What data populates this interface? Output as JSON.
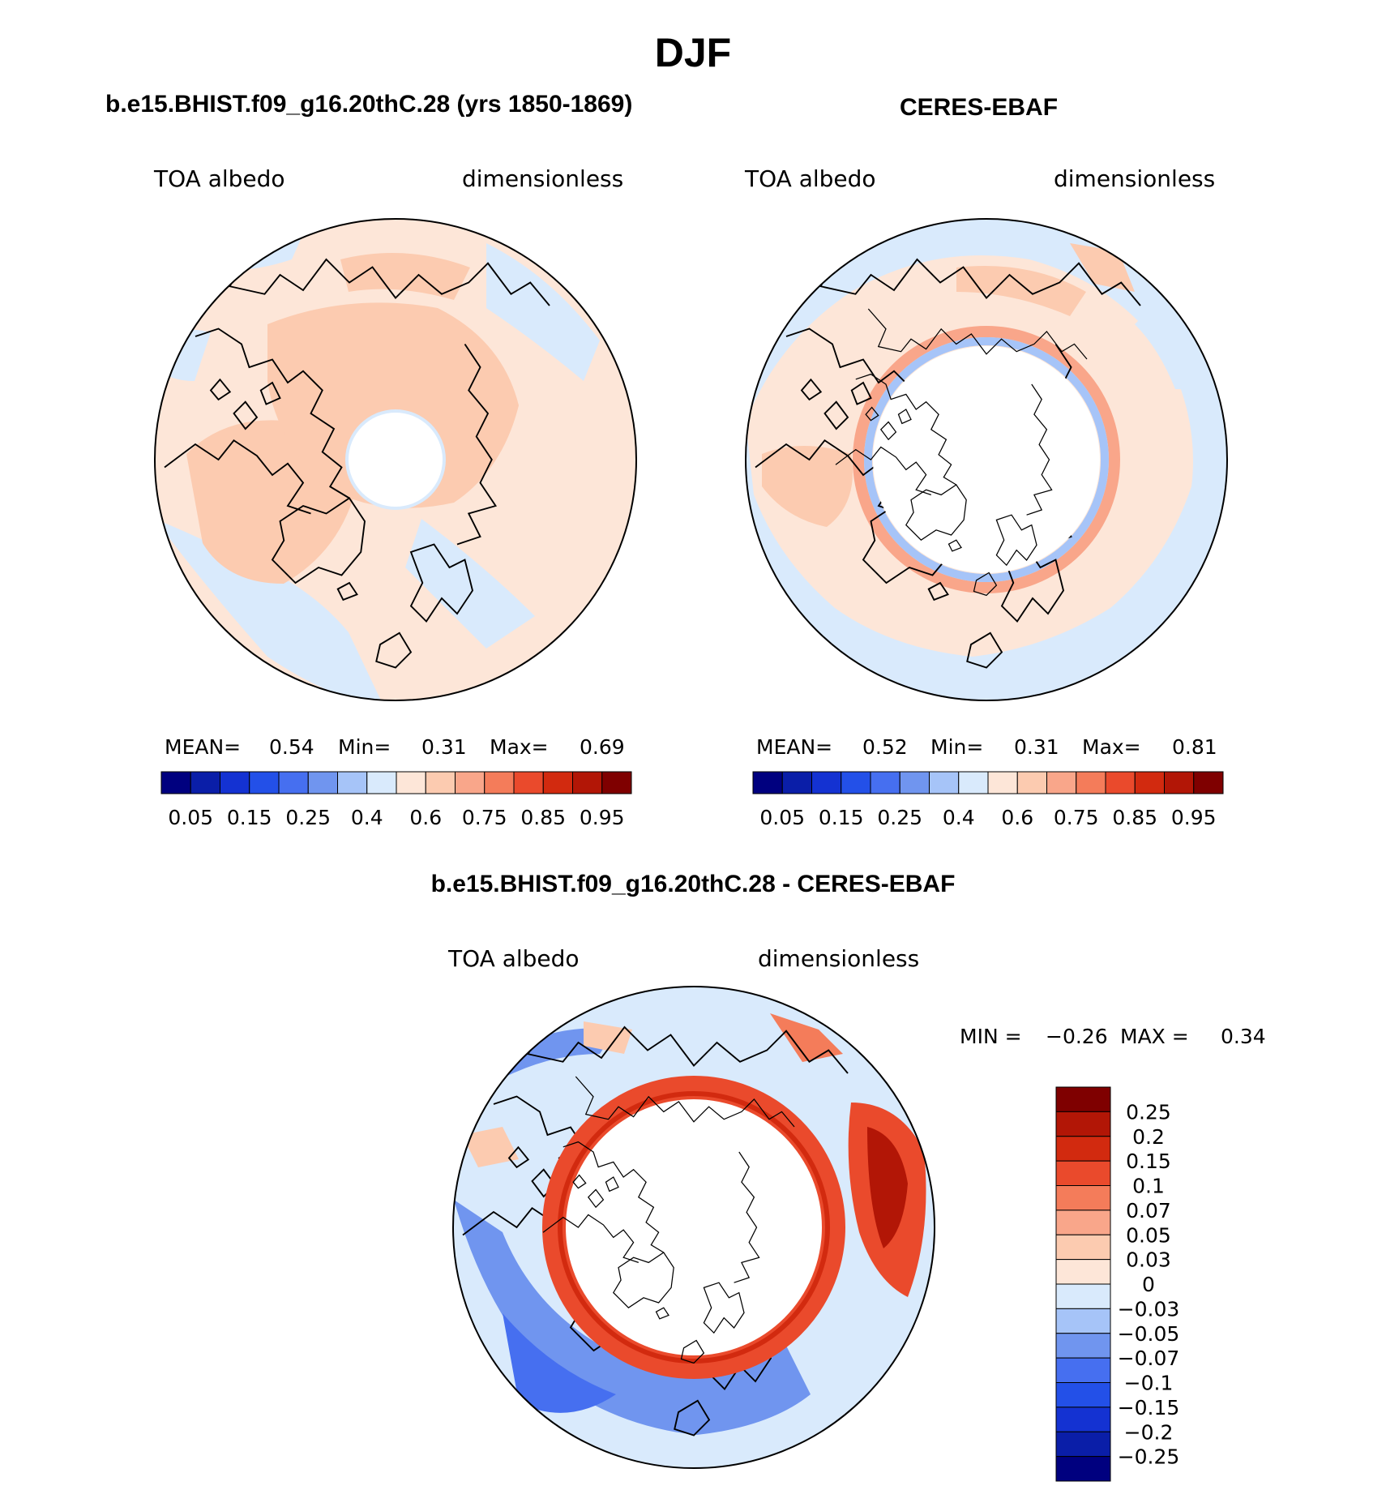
{
  "title": "DJF",
  "panels": [
    {
      "title": "b.e15.BHIST.f09_g16.20thC.28 (yrs 1850-1869)",
      "variable": "TOA albedo",
      "units": "dimensionless",
      "stats": {
        "mean_label": "MEAN=",
        "mean": "0.54",
        "min_label": "Min=",
        "min": "0.31",
        "max_label": "Max=",
        "max": "0.69"
      },
      "colorbar_ticks": [
        "0.05",
        "0.15",
        "0.25",
        "0.4",
        "0.6",
        "0.75",
        "0.85",
        "0.95"
      ],
      "hole_fraction": 0.2
    },
    {
      "title": "CERES-EBAF",
      "variable": "TOA albedo",
      "units": "dimensionless",
      "stats": {
        "mean_label": "MEAN=",
        "mean": "0.52",
        "min_label": "Min=",
        "min": "0.31",
        "max_label": "Max=",
        "max": "0.81"
      },
      "colorbar_ticks": [
        "0.05",
        "0.15",
        "0.25",
        "0.4",
        "0.6",
        "0.75",
        "0.85",
        "0.95"
      ],
      "hole_fraction": 0.49
    },
    {
      "title": "b.e15.BHIST.f09_g16.20thC.28 - CERES-EBAF",
      "variable": "TOA albedo",
      "units": "dimensionless",
      "stats": {
        "min_label": "MIN =",
        "min": "−0.26",
        "max_label": "MAX =",
        "max": "0.34"
      },
      "colorbar_ticks": [
        "0.25",
        "0.2",
        "0.15",
        "0.1",
        "0.07",
        "0.05",
        "0.03",
        "0",
        "−0.03",
        "−0.05",
        "−0.07",
        "−0.1",
        "−0.15",
        "−0.2",
        "−0.25"
      ],
      "hole_fraction": 0.49
    }
  ],
  "colors": {
    "absolute_scale": [
      "#00007f",
      "#0a1ea8",
      "#1432d2",
      "#2350e8",
      "#466ff0",
      "#7095ef",
      "#a6c4f8",
      "#d9eafc",
      "#fde6d8",
      "#fccbb0",
      "#f9a68a",
      "#f47c5a",
      "#ea4a2c",
      "#d22a0f",
      "#b21606",
      "#7f0000"
    ],
    "difference_scale": [
      "#00007f",
      "#0a1ea8",
      "#1432d2",
      "#2350e8",
      "#466ff0",
      "#7095ef",
      "#a6c4f8",
      "#d9eafc",
      "#fde6d8",
      "#fccbb0",
      "#f9a68a",
      "#f47c5a",
      "#ea4a2c",
      "#d22a0f",
      "#b21606",
      "#7f0000"
    ],
    "land_outline": "#000000"
  }
}
